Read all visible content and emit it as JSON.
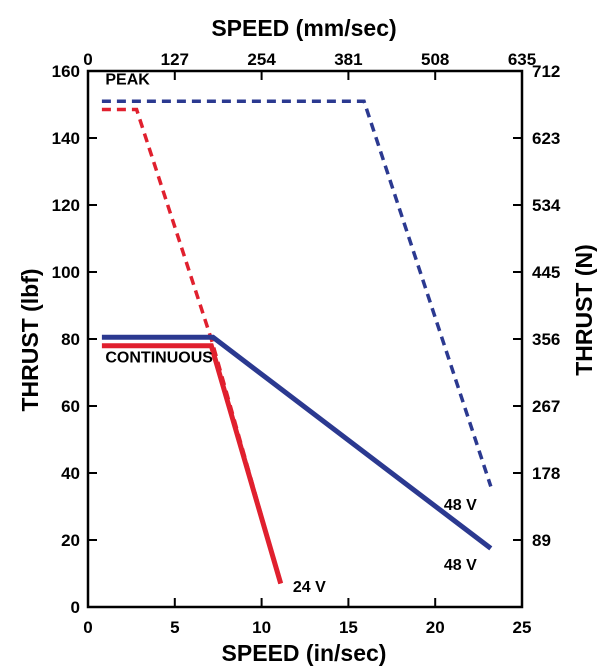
{
  "chart_data": {
    "type": "line",
    "xlabel_bottom": "SPEED (in/sec)",
    "xlabel_top": "SPEED (mm/sec)",
    "ylabel_left": "THRUST (lbf)",
    "ylabel_right": "THRUST (N)",
    "xlim": [
      0,
      25
    ],
    "ylim": [
      0,
      160
    ],
    "x_ticks_bottom": [
      "0",
      "5",
      "10",
      "15",
      "20",
      "25"
    ],
    "x_ticks_top": [
      "0",
      "127",
      "254",
      "381",
      "508",
      "635"
    ],
    "y_ticks_left": [
      "0",
      "20",
      "40",
      "60",
      "80",
      "100",
      "120",
      "140",
      "160"
    ],
    "y_ticks_right": [
      "89",
      "178",
      "267",
      "356",
      "445",
      "534",
      "623",
      "712"
    ],
    "grid": false,
    "series": [
      {
        "name": "24 V",
        "style": "dashed",
        "color": "#e0202e",
        "points": [
          [
            0.8,
            148.5
          ],
          [
            2.8,
            148.5
          ],
          [
            7.1,
            80
          ],
          [
            11.1,
            7
          ]
        ]
      },
      {
        "name": "24 V",
        "style": "solid",
        "color": "#e0202e",
        "points": [
          [
            0.8,
            78
          ],
          [
            7.1,
            78
          ],
          [
            11.1,
            7
          ]
        ]
      },
      {
        "name": "48 V",
        "style": "dashed",
        "color": "#2b3990",
        "points": [
          [
            0.8,
            151
          ],
          [
            15.9,
            151
          ],
          [
            23.2,
            36
          ]
        ]
      },
      {
        "name": "48 V",
        "style": "solid",
        "color": "#2b3990",
        "points": [
          [
            0.8,
            80.5
          ],
          [
            7.2,
            80.5
          ],
          [
            23.2,
            17.5
          ]
        ]
      }
    ],
    "annotations": [
      {
        "text": "PEAK",
        "x": 1.0,
        "y": 156
      },
      {
        "text": "CONTINUOUS",
        "x": 1.0,
        "y": 73
      },
      {
        "text": "24 V",
        "x": 11.8,
        "y": 4.5
      },
      {
        "text": "48 V",
        "x": 20.5,
        "y": 29
      },
      {
        "text": "48 V",
        "x": 20.5,
        "y": 11
      }
    ]
  }
}
